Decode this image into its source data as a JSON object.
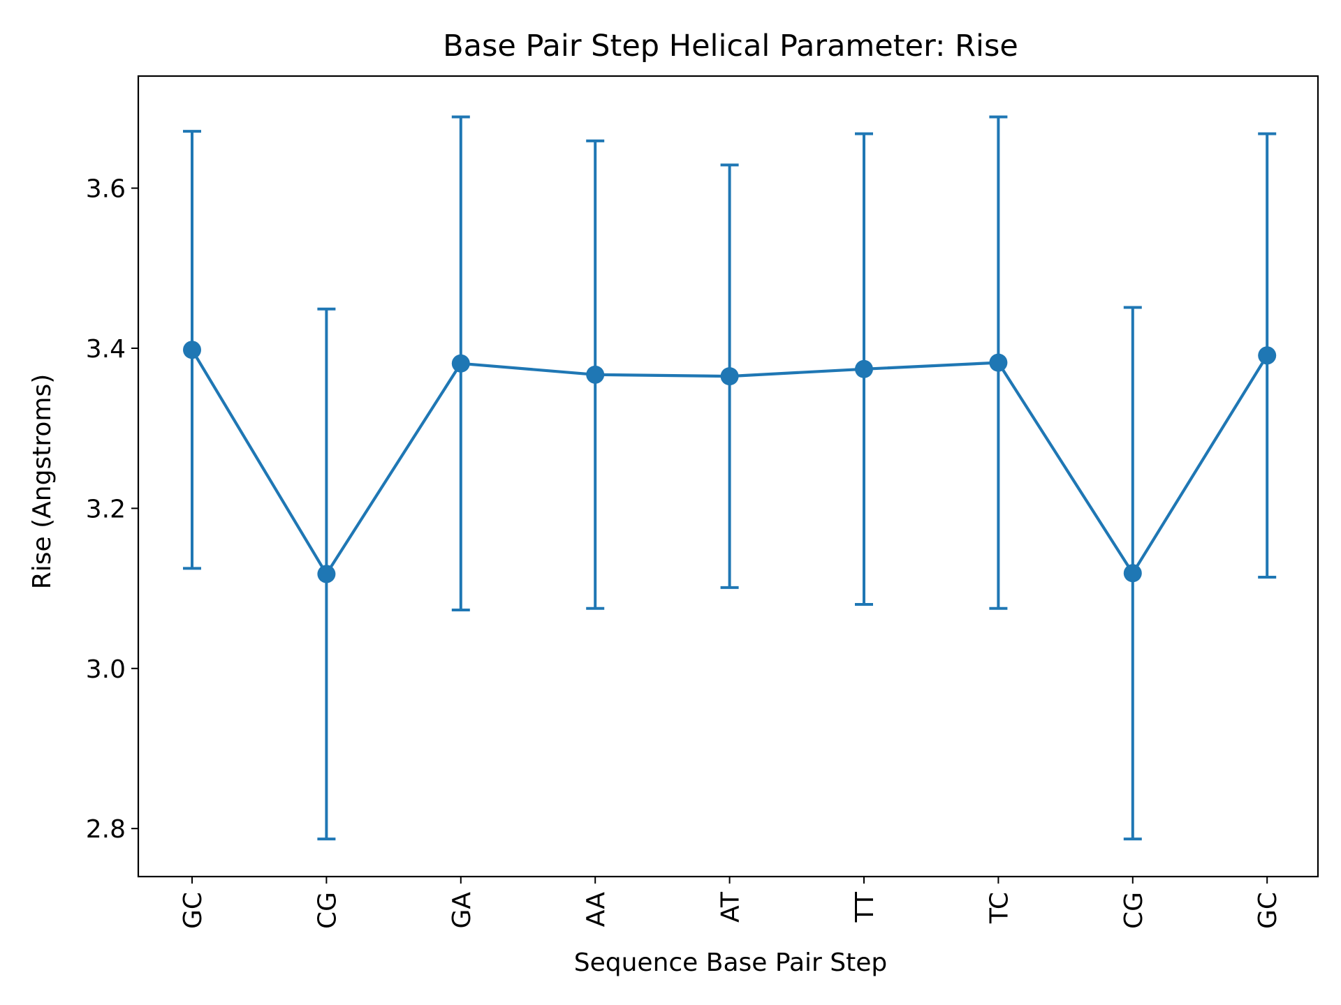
{
  "chart_data": {
    "type": "line",
    "title": "Base Pair Step Helical Parameter: Rise",
    "xlabel": "Sequence Base Pair Step",
    "ylabel": "Rise (Angstroms)",
    "categories": [
      "GC",
      "CG",
      "GA",
      "AA",
      "AT",
      "TT",
      "TC",
      "CG",
      "GC"
    ],
    "series": [
      {
        "values": [
          3.398,
          3.118,
          3.381,
          3.367,
          3.365,
          3.374,
          3.382,
          3.119,
          3.391
        ],
        "error": [
          0.273,
          0.331,
          0.308,
          0.292,
          0.264,
          0.294,
          0.307,
          0.332,
          0.277
        ],
        "color": "#1f77b4",
        "marker": "circle"
      }
    ],
    "y_ticks": [
      2.8,
      3.0,
      3.2,
      3.4,
      3.6
    ],
    "y_tick_labels": [
      "2.8",
      "3.0",
      "3.2",
      "3.4",
      "3.6"
    ],
    "ylim": [
      2.74,
      3.74
    ],
    "grid": false,
    "legend": false,
    "error_bars": true,
    "x_tick_rotation": "vertical"
  }
}
